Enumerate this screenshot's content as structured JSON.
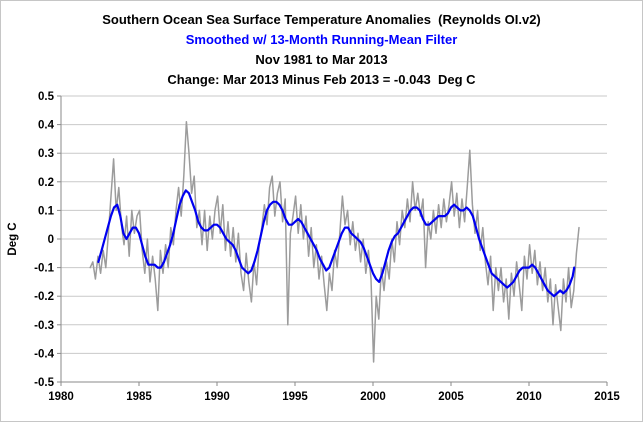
{
  "titles": {
    "line1": "Southern Ocean Sea Surface Temperature Anomalies  (Reynolds OI.v2)",
    "line2": "Smoothed w/ 13-Month Running-Mean Filter",
    "line3": "Nov 1981 to Mar 2013",
    "line4": "Change: Mar 2013 Minus Feb 2013 = -0.043  Deg C"
  },
  "colors": {
    "monthly_series": "#9c9c9c",
    "smoothed_series": "#0000f0",
    "gridline": "#c9c9c9",
    "axis": "#8a8a8a",
    "title_accent": "#0000ff",
    "text": "#000000"
  },
  "chart_data": {
    "type": "line",
    "title": "Southern Ocean Sea Surface Temperature Anomalies  (Reynolds OI.v2)",
    "subtitle": "Smoothed w/ 13-Month Running-Mean Filter",
    "period": "Nov 1981 to Mar 2013",
    "note": "Change: Mar 2013 Minus Feb 2013 = -0.043 Deg C",
    "ylabel": "Deg C",
    "xlim": [
      1980,
      2015
    ],
    "ylim": [
      -0.5,
      0.5
    ],
    "grid": "horizontal",
    "legend": "none",
    "x_ticks": [
      1980,
      1985,
      1990,
      1995,
      2000,
      2005,
      2010,
      2015
    ],
    "x_tick_labels": [
      "1980",
      "1985",
      "1990",
      "1995",
      "2000",
      "2005",
      "2010",
      "2015"
    ],
    "y_ticks": [
      0.5,
      0.4,
      0.3,
      0.2,
      0.1,
      0,
      -0.1,
      -0.2,
      -0.3,
      -0.4,
      -0.5
    ],
    "y_tick_labels": [
      "0.5",
      "0.4",
      "0.3",
      "0.2",
      "0.1",
      "0",
      "-0.1",
      "-0.2",
      "-0.3",
      "-0.4",
      "-0.5"
    ],
    "series": [
      {
        "name": "monthly-anomalies",
        "color": "#9c9c9c",
        "width": 1.5,
        "x_start": 1981.871,
        "x_step": 0.16667,
        "values": [
          -0.1,
          -0.08,
          -0.14,
          -0.06,
          -0.12,
          -0.04,
          -0.1,
          0.02,
          0.15,
          0.28,
          0.1,
          0.18,
          0.05,
          -0.02,
          0.08,
          -0.06,
          0.1,
          0.02,
          0.08,
          0.1,
          -0.04,
          -0.12,
          0.0,
          -0.15,
          -0.06,
          -0.14,
          -0.25,
          -0.04,
          -0.12,
          -0.02,
          -0.1,
          0.04,
          -0.02,
          0.1,
          0.18,
          0.08,
          0.22,
          0.41,
          0.3,
          0.16,
          0.22,
          0.04,
          0.1,
          -0.02,
          0.1,
          -0.04,
          0.08,
          0.0,
          0.1,
          0.15,
          0.02,
          0.12,
          -0.04,
          0.06,
          -0.06,
          0.04,
          -0.08,
          0.02,
          -0.12,
          -0.18,
          -0.05,
          -0.15,
          -0.22,
          -0.08,
          -0.16,
          -0.02,
          0.04,
          0.12,
          0.05,
          0.18,
          0.22,
          0.08,
          0.16,
          0.2,
          0.06,
          0.14,
          -0.3,
          0.02,
          0.08,
          0.15,
          0.02,
          0.12,
          0.0,
          0.08,
          -0.06,
          0.04,
          -0.1,
          -0.02,
          -0.14,
          -0.06,
          -0.16,
          -0.25,
          -0.12,
          -0.18,
          -0.04,
          -0.1,
          0.02,
          0.15,
          0.05,
          0.1,
          -0.02,
          0.06,
          -0.04,
          0.02,
          -0.08,
          0.0,
          -0.12,
          -0.04,
          -0.14,
          -0.43,
          -0.2,
          -0.28,
          -0.1,
          -0.18,
          -0.08,
          -0.14,
          0.0,
          -0.08,
          0.06,
          -0.02,
          0.1,
          0.04,
          0.14,
          0.06,
          0.2,
          0.1,
          0.16,
          0.08,
          0.14,
          -0.1,
          0.06,
          0.0,
          0.1,
          0.02,
          0.12,
          0.04,
          0.14,
          0.06,
          0.12,
          0.2,
          0.08,
          0.16,
          0.04,
          0.14,
          0.06,
          0.18,
          0.31,
          0.12,
          0.02,
          0.1,
          -0.04,
          0.04,
          -0.08,
          -0.16,
          -0.06,
          -0.25,
          -0.1,
          -0.18,
          -0.1,
          -0.22,
          -0.14,
          -0.28,
          -0.12,
          -0.2,
          -0.08,
          -0.16,
          -0.25,
          -0.06,
          -0.14,
          -0.02,
          -0.12,
          -0.04,
          -0.16,
          -0.08,
          -0.18,
          -0.1,
          -0.22,
          -0.14,
          -0.3,
          -0.16,
          -0.24,
          -0.32,
          -0.14,
          -0.22,
          -0.1,
          -0.24,
          -0.18,
          -0.05,
          0.04
        ]
      },
      {
        "name": "13-month-running-mean",
        "color": "#0000f0",
        "width": 2.2,
        "points": [
          [
            1982.4,
            -0.08
          ],
          [
            1982.6,
            -0.04
          ],
          [
            1982.8,
            0.0
          ],
          [
            1983.0,
            0.04
          ],
          [
            1983.2,
            0.08
          ],
          [
            1983.4,
            0.11
          ],
          [
            1983.6,
            0.12
          ],
          [
            1983.8,
            0.08
          ],
          [
            1984.0,
            0.02
          ],
          [
            1984.2,
            0.0
          ],
          [
            1984.4,
            0.02
          ],
          [
            1984.6,
            0.04
          ],
          [
            1984.8,
            0.04
          ],
          [
            1985.0,
            0.02
          ],
          [
            1985.2,
            -0.02
          ],
          [
            1985.4,
            -0.06
          ],
          [
            1985.6,
            -0.09
          ],
          [
            1985.8,
            -0.09
          ],
          [
            1986.0,
            -0.09
          ],
          [
            1986.2,
            -0.1
          ],
          [
            1986.4,
            -0.1
          ],
          [
            1986.6,
            -0.08
          ],
          [
            1986.8,
            -0.05
          ],
          [
            1987.0,
            -0.02
          ],
          [
            1987.2,
            0.02
          ],
          [
            1987.4,
            0.07
          ],
          [
            1987.6,
            0.12
          ],
          [
            1987.8,
            0.15
          ],
          [
            1988.0,
            0.17
          ],
          [
            1988.2,
            0.16
          ],
          [
            1988.4,
            0.13
          ],
          [
            1988.6,
            0.1
          ],
          [
            1988.8,
            0.06
          ],
          [
            1989.0,
            0.04
          ],
          [
            1989.2,
            0.03
          ],
          [
            1989.4,
            0.03
          ],
          [
            1989.6,
            0.04
          ],
          [
            1989.8,
            0.05
          ],
          [
            1990.0,
            0.05
          ],
          [
            1990.2,
            0.04
          ],
          [
            1990.4,
            0.02
          ],
          [
            1990.6,
            0.0
          ],
          [
            1990.8,
            -0.01
          ],
          [
            1991.0,
            -0.02
          ],
          [
            1991.2,
            -0.04
          ],
          [
            1991.4,
            -0.07
          ],
          [
            1991.6,
            -0.1
          ],
          [
            1991.8,
            -0.11
          ],
          [
            1992.0,
            -0.12
          ],
          [
            1992.2,
            -0.11
          ],
          [
            1992.4,
            -0.08
          ],
          [
            1992.6,
            -0.04
          ],
          [
            1992.8,
            0.01
          ],
          [
            1993.0,
            0.06
          ],
          [
            1993.2,
            0.1
          ],
          [
            1993.4,
            0.12
          ],
          [
            1993.6,
            0.13
          ],
          [
            1993.8,
            0.13
          ],
          [
            1994.0,
            0.12
          ],
          [
            1994.2,
            0.1
          ],
          [
            1994.4,
            0.07
          ],
          [
            1994.6,
            0.05
          ],
          [
            1994.8,
            0.05
          ],
          [
            1995.0,
            0.06
          ],
          [
            1995.2,
            0.07
          ],
          [
            1995.4,
            0.06
          ],
          [
            1995.6,
            0.04
          ],
          [
            1995.8,
            0.02
          ],
          [
            1996.0,
            0.0
          ],
          [
            1996.2,
            -0.02
          ],
          [
            1996.4,
            -0.04
          ],
          [
            1996.6,
            -0.07
          ],
          [
            1996.8,
            -0.09
          ],
          [
            1997.0,
            -0.11
          ],
          [
            1997.2,
            -0.1
          ],
          [
            1997.4,
            -0.07
          ],
          [
            1997.6,
            -0.04
          ],
          [
            1997.8,
            -0.01
          ],
          [
            1998.0,
            0.02
          ],
          [
            1998.2,
            0.04
          ],
          [
            1998.4,
            0.04
          ],
          [
            1998.6,
            0.02
          ],
          [
            1998.8,
            0.01
          ],
          [
            1999.0,
            0.0
          ],
          [
            1999.2,
            -0.01
          ],
          [
            1999.4,
            -0.03
          ],
          [
            1999.6,
            -0.06
          ],
          [
            1999.8,
            -0.09
          ],
          [
            2000.0,
            -0.12
          ],
          [
            2000.2,
            -0.14
          ],
          [
            2000.4,
            -0.15
          ],
          [
            2000.6,
            -0.12
          ],
          [
            2000.8,
            -0.08
          ],
          [
            2001.0,
            -0.04
          ],
          [
            2001.2,
            -0.01
          ],
          [
            2001.4,
            0.01
          ],
          [
            2001.6,
            0.02
          ],
          [
            2001.8,
            0.04
          ],
          [
            2002.0,
            0.06
          ],
          [
            2002.2,
            0.08
          ],
          [
            2002.4,
            0.1
          ],
          [
            2002.6,
            0.11
          ],
          [
            2002.8,
            0.11
          ],
          [
            2003.0,
            0.1
          ],
          [
            2003.2,
            0.07
          ],
          [
            2003.4,
            0.05
          ],
          [
            2003.6,
            0.05
          ],
          [
            2003.8,
            0.06
          ],
          [
            2004.0,
            0.07
          ],
          [
            2004.2,
            0.08
          ],
          [
            2004.4,
            0.08
          ],
          [
            2004.6,
            0.08
          ],
          [
            2004.8,
            0.09
          ],
          [
            2005.0,
            0.11
          ],
          [
            2005.2,
            0.12
          ],
          [
            2005.4,
            0.11
          ],
          [
            2005.6,
            0.1
          ],
          [
            2005.8,
            0.1
          ],
          [
            2006.0,
            0.11
          ],
          [
            2006.2,
            0.1
          ],
          [
            2006.4,
            0.08
          ],
          [
            2006.6,
            0.04
          ],
          [
            2006.8,
            0.0
          ],
          [
            2007.0,
            -0.03
          ],
          [
            2007.2,
            -0.06
          ],
          [
            2007.4,
            -0.09
          ],
          [
            2007.6,
            -0.12
          ],
          [
            2007.8,
            -0.13
          ],
          [
            2008.0,
            -0.14
          ],
          [
            2008.2,
            -0.15
          ],
          [
            2008.4,
            -0.16
          ],
          [
            2008.6,
            -0.17
          ],
          [
            2008.8,
            -0.16
          ],
          [
            2009.0,
            -0.15
          ],
          [
            2009.2,
            -0.13
          ],
          [
            2009.4,
            -0.11
          ],
          [
            2009.6,
            -0.1
          ],
          [
            2009.8,
            -0.1
          ],
          [
            2010.0,
            -0.1
          ],
          [
            2010.2,
            -0.09
          ],
          [
            2010.4,
            -0.1
          ],
          [
            2010.6,
            -0.12
          ],
          [
            2010.8,
            -0.14
          ],
          [
            2011.0,
            -0.16
          ],
          [
            2011.2,
            -0.18
          ],
          [
            2011.4,
            -0.19
          ],
          [
            2011.6,
            -0.2
          ],
          [
            2011.8,
            -0.19
          ],
          [
            2012.0,
            -0.18
          ],
          [
            2012.2,
            -0.19
          ],
          [
            2012.4,
            -0.18
          ],
          [
            2012.6,
            -0.16
          ],
          [
            2012.8,
            -0.13
          ],
          [
            2012.9,
            -0.1
          ]
        ]
      }
    ]
  }
}
